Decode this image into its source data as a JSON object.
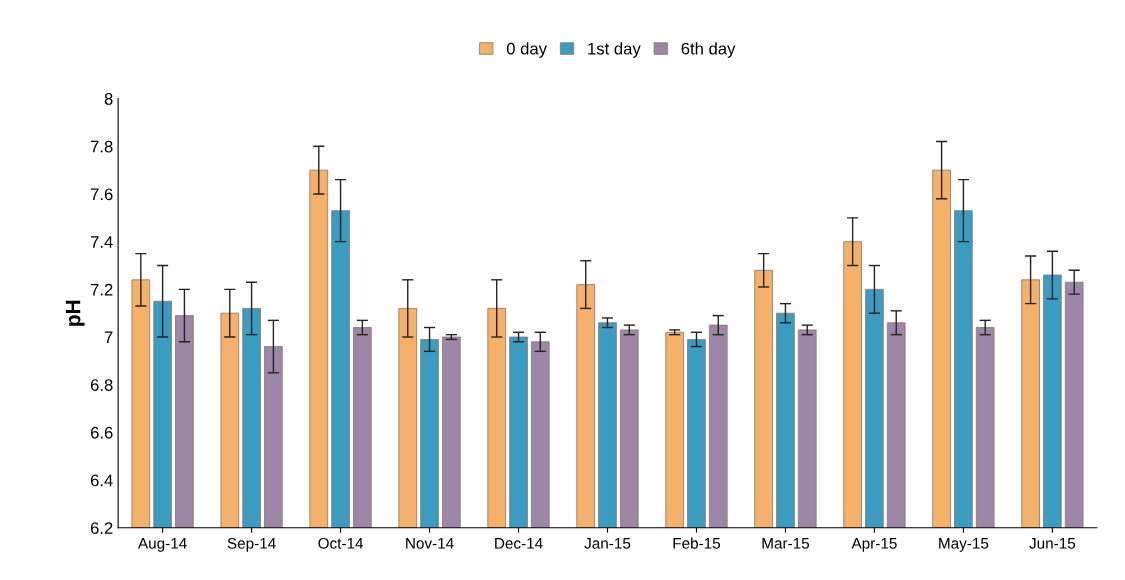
{
  "chart_data": {
    "type": "bar",
    "ylabel": "pH",
    "categories": [
      "Aug-14",
      "Sep-14",
      "Oct-14",
      "Nov-14",
      "Dec-14",
      "Jan-15",
      "Feb-15",
      "Mar-15",
      "Apr-15",
      "May-15",
      "Jun-15"
    ],
    "series": [
      {
        "name": "0 day",
        "color": "#f5b06a",
        "values": [
          7.24,
          7.1,
          7.7,
          7.12,
          7.12,
          7.22,
          7.02,
          7.28,
          7.4,
          7.7,
          7.24
        ],
        "errors": [
          0.11,
          0.1,
          0.1,
          0.12,
          0.12,
          0.1,
          0.01,
          0.07,
          0.1,
          0.12,
          0.1
        ]
      },
      {
        "name": "1st day",
        "color": "#3a9cc0",
        "values": [
          7.15,
          7.12,
          7.53,
          6.99,
          7.0,
          7.06,
          6.99,
          7.1,
          7.2,
          7.53,
          7.26
        ],
        "errors": [
          0.15,
          0.11,
          0.13,
          0.05,
          0.02,
          0.02,
          0.03,
          0.04,
          0.1,
          0.13,
          0.1
        ]
      },
      {
        "name": "6th day",
        "color": "#9d86a8",
        "values": [
          7.09,
          6.96,
          7.04,
          7.0,
          6.98,
          7.03,
          7.05,
          7.03,
          7.06,
          7.04,
          7.23
        ],
        "errors": [
          0.11,
          0.11,
          0.03,
          0.01,
          0.04,
          0.02,
          0.04,
          0.02,
          0.05,
          0.03,
          0.05
        ]
      }
    ],
    "ylim": [
      6.2,
      8
    ],
    "yticks": [
      6.2,
      6.4,
      6.6,
      6.8,
      7,
      7.2,
      7.4,
      7.6,
      7.8,
      8
    ],
    "grid": false,
    "legend": "top"
  }
}
